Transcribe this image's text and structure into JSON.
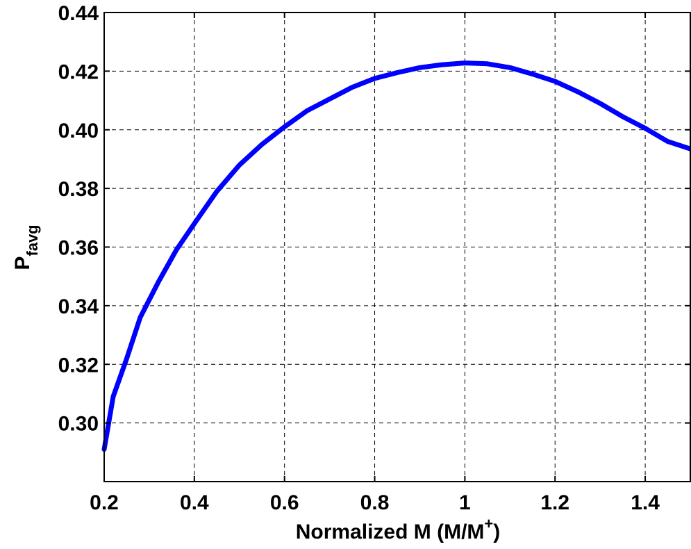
{
  "chart_data": {
    "type": "line",
    "title": "",
    "xlabel": {
      "main": "Normalized M (M/M",
      "sup": "+",
      "tail": ")"
    },
    "ylabel": {
      "main": "P",
      "sub": "favg"
    },
    "xlim": [
      0.2,
      1.5
    ],
    "ylim": [
      0.28,
      0.44
    ],
    "xticks": [
      0.2,
      0.4,
      0.6,
      0.8,
      1.0,
      1.2,
      1.4
    ],
    "xtick_labels": [
      "0.2",
      "0.4",
      "0.6",
      "0.8",
      "1",
      "1.2",
      "1.4"
    ],
    "yticks": [
      0.3,
      0.32,
      0.34,
      0.36,
      0.38,
      0.4,
      0.42,
      0.44
    ],
    "ytick_labels": [
      "0.30",
      "0.32",
      "0.34",
      "0.36",
      "0.38",
      "0.40",
      "0.42",
      "0.44"
    ],
    "grid": true,
    "series": [
      {
        "color": "#0000ff",
        "x": [
          0.2,
          0.22,
          0.25,
          0.28,
          0.32,
          0.36,
          0.4,
          0.45,
          0.5,
          0.55,
          0.6,
          0.65,
          0.7,
          0.75,
          0.8,
          0.85,
          0.9,
          0.95,
          1.0,
          1.05,
          1.1,
          1.15,
          1.2,
          1.25,
          1.3,
          1.35,
          1.4,
          1.45,
          1.5
        ],
        "y": [
          0.291,
          0.309,
          0.322,
          0.336,
          0.348,
          0.359,
          0.368,
          0.379,
          0.388,
          0.395,
          0.401,
          0.4065,
          0.4105,
          0.4145,
          0.4175,
          0.4195,
          0.4212,
          0.4222,
          0.4228,
          0.4225,
          0.4212,
          0.419,
          0.4165,
          0.413,
          0.409,
          0.4045,
          0.4005,
          0.396,
          0.3935
        ]
      }
    ]
  }
}
